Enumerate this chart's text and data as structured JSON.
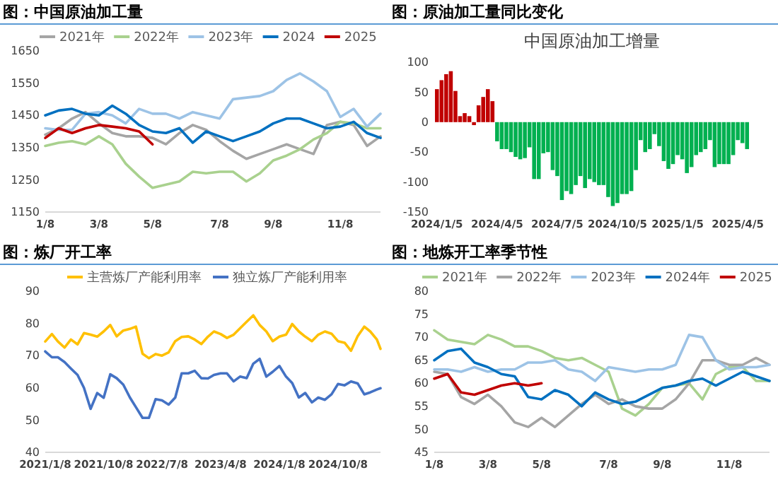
{
  "chart_data": [
    {
      "type": "line",
      "title": "图：中国原油加工量",
      "legend": "top",
      "categories": [
        "1/8",
        null,
        null,
        null,
        "3/8",
        null,
        null,
        null,
        "5/8",
        null,
        null,
        null,
        null,
        "7/8",
        null,
        null,
        null,
        "9/8",
        null,
        null,
        null,
        null,
        "11/8",
        null,
        null,
        null
      ],
      "ylim": [
        1150,
        1650
      ],
      "yticks": [
        1150,
        1250,
        1350,
        1450,
        1550,
        1650
      ],
      "series": [
        {
          "name": "2021年",
          "color": "#a5a5a5",
          "values": [
            1390,
            1410,
            1440,
            1460,
            1425,
            1395,
            1385,
            1385,
            1380,
            1360,
            1395,
            1420,
            1405,
            1370,
            1340,
            1315,
            1330,
            1345,
            1360,
            1345,
            1330,
            1420,
            1430,
            1420,
            1355,
            1385
          ]
        },
        {
          "name": "2022年",
          "color": "#a9d18e",
          "values": [
            1355,
            1365,
            1370,
            1360,
            1385,
            1360,
            1300,
            1260,
            1225,
            1235,
            1245,
            1275,
            1270,
            1275,
            1275,
            1245,
            1270,
            1310,
            1325,
            1345,
            1375,
            1395,
            1430,
            1425,
            1410,
            1410
          ]
        },
        {
          "name": "2023年",
          "color": "#9dc3e6",
          "values": [
            1410,
            1405,
            1405,
            1455,
            1460,
            1450,
            1425,
            1470,
            1455,
            1455,
            1440,
            1460,
            1450,
            1440,
            1500,
            1505,
            1510,
            1525,
            1560,
            1580,
            1555,
            1525,
            1445,
            1470,
            1415,
            1455
          ]
        },
        {
          "name": "2024",
          "color": "#0070c0",
          "values": [
            1450,
            1465,
            1470,
            1455,
            1450,
            1480,
            1455,
            1420,
            1400,
            1395,
            1410,
            1365,
            1400,
            1385,
            1370,
            1385,
            1400,
            1425,
            1440,
            1440,
            1425,
            1410,
            1415,
            1430,
            1395,
            1380
          ]
        },
        {
          "name": "2025",
          "color": "#c00000",
          "values": [
            1380,
            1410,
            1395,
            1410,
            1420,
            1415,
            1410,
            1400,
            1360,
            null,
            null,
            null,
            null,
            null,
            null,
            null,
            null,
            null,
            null,
            null,
            null,
            null,
            null,
            null,
            null,
            null
          ]
        }
      ]
    },
    {
      "type": "bar",
      "title": "图：原油加工量同比变化",
      "subtitle": "中国原油加工增量",
      "categories": [
        "2024/1/5",
        null,
        null,
        null,
        null,
        null,
        null,
        null,
        null,
        null,
        null,
        null,
        null,
        "2024/4/5",
        null,
        null,
        null,
        null,
        null,
        null,
        null,
        null,
        null,
        null,
        null,
        null,
        "2024/7/5",
        null,
        null,
        null,
        null,
        null,
        null,
        null,
        null,
        null,
        null,
        null,
        null,
        "2024/10/5",
        null,
        null,
        null,
        null,
        null,
        null,
        null,
        null,
        null,
        null,
        null,
        null,
        "2025/1/5",
        null,
        null,
        null,
        null,
        null,
        null,
        null,
        null,
        null,
        null,
        null,
        null,
        "2025/4/5",
        null,
        null
      ],
      "ylim": [
        -150,
        100
      ],
      "yticks": [
        -150,
        -100,
        -50,
        0,
        50,
        100
      ],
      "values": [
        55,
        70,
        80,
        85,
        52,
        10,
        15,
        10,
        -5,
        28,
        42,
        55,
        35,
        -32,
        -45,
        -45,
        -50,
        -58,
        -62,
        -60,
        -42,
        -95,
        -95,
        -52,
        -50,
        -80,
        -90,
        -130,
        -115,
        -120,
        -105,
        -90,
        -110,
        -95,
        -100,
        -105,
        -105,
        -125,
        -140,
        -135,
        -120,
        -120,
        -115,
        -80,
        -30,
        -50,
        -45,
        -20,
        -40,
        -65,
        -78,
        -70,
        -55,
        -62,
        -85,
        -75,
        -55,
        -50,
        -45,
        -30,
        -75,
        -70,
        -70,
        -70,
        -55,
        -30,
        -35,
        -45
      ],
      "colors": [
        "#c00000",
        "#c00000",
        "#c00000",
        "#c00000",
        "#c00000",
        "#c00000",
        "#c00000",
        "#c00000",
        "#c00000",
        "#c00000",
        "#c00000",
        "#c00000",
        "#c00000",
        "#00b050",
        "#00b050",
        "#00b050",
        "#00b050",
        "#00b050",
        "#00b050",
        "#00b050",
        "#00b050",
        "#00b050",
        "#00b050",
        "#00b050",
        "#00b050",
        "#00b050",
        "#00b050",
        "#00b050",
        "#00b050",
        "#00b050",
        "#00b050",
        "#00b050",
        "#00b050",
        "#00b050",
        "#00b050",
        "#00b050",
        "#00b050",
        "#00b050",
        "#00b050",
        "#00b050",
        "#00b050",
        "#00b050",
        "#00b050",
        "#00b050",
        "#00b050",
        "#00b050",
        "#00b050",
        "#00b050",
        "#00b050",
        "#00b050",
        "#00b050",
        "#00b050",
        "#00b050",
        "#00b050",
        "#00b050",
        "#00b050",
        "#00b050",
        "#00b050",
        "#00b050",
        "#00b050",
        "#00b050",
        "#00b050",
        "#00b050",
        "#00b050",
        "#00b050",
        "#00b050",
        "#00b050",
        "#00b050"
      ]
    },
    {
      "type": "line",
      "title": "图：炼厂开工率",
      "legend": "top",
      "x": [
        "2021-01-08",
        "2021-02-08",
        "2021-03-08",
        "2021-04-08",
        "2021-05-08",
        "2021-06-08",
        "2021-07-08",
        "2021-08-08",
        "2021-09-08",
        "2021-10-08",
        "2021-11-08",
        "2021-12-08",
        "2022-01-08",
        "2022-02-08",
        "2022-03-08",
        "2022-04-08",
        "2022-05-08",
        "2022-06-08",
        "2022-07-08",
        "2022-08-08",
        "2022-09-08",
        "2022-10-08",
        "2022-11-08",
        "2022-12-08",
        "2023-01-08",
        "2023-02-08",
        "2023-03-08",
        "2023-04-08",
        "2023-05-08",
        "2023-06-08",
        "2023-07-08",
        "2023-08-08",
        "2023-09-08",
        "2023-10-08",
        "2023-11-08",
        "2023-12-08",
        "2024-01-08",
        "2024-02-08",
        "2024-03-08",
        "2024-04-08",
        "2024-05-08",
        "2024-06-08",
        "2024-07-08",
        "2024-08-08",
        "2024-09-08",
        "2024-10-08",
        "2024-11-08",
        "2024-12-08",
        "2025-01-08",
        "2025-02-08",
        "2025-03-08",
        "2025-04-08",
        "2025-04-25"
      ],
      "xlim": [
        "2021-01-08",
        "2025-04-25"
      ],
      "xticks": [
        {
          "value": "2021-01-08",
          "label": "2021/1/8"
        },
        {
          "value": "2021-10-08",
          "label": "2021/10/8"
        },
        {
          "value": "2022-07-08",
          "label": "2022/7/8"
        },
        {
          "value": "2023-04-08",
          "label": "2023/4/8"
        },
        {
          "value": "2024-01-08",
          "label": "2024/1/8"
        },
        {
          "value": "2024-10-08",
          "label": "2024/10/8"
        }
      ],
      "ylim": [
        40,
        90
      ],
      "yticks": [
        40,
        50,
        60,
        70,
        80,
        90
      ],
      "series": [
        {
          "name": "主营炼厂产能利用率",
          "color": "#ffc000",
          "values": [
            74.4,
            76.7,
            74.4,
            72.5,
            75.0,
            73.5,
            77.0,
            76.5,
            75.9,
            77.5,
            79.5,
            76.0,
            77.8,
            78.3,
            79.0,
            70.6,
            69.2,
            70.5,
            70.0,
            71.0,
            74.5,
            75.8,
            76.0,
            75.0,
            73.6,
            75.9,
            77.5,
            76.7,
            75.5,
            76.5,
            78.5,
            80.5,
            82.5,
            79.5,
            77.5,
            74.5,
            75.9,
            76.5,
            79.8,
            77.5,
            75.9,
            74.5,
            76.5,
            77.5,
            76.8,
            74.5,
            74.0,
            71.5,
            76.0,
            79.0,
            77.5,
            75.0,
            72.1
          ]
        },
        {
          "name": "独立炼厂产能利用率",
          "color": "#4472c4",
          "values": [
            71.3,
            69.5,
            69.5,
            68.0,
            66.0,
            64.0,
            60.0,
            53.5,
            58.4,
            56.9,
            64.2,
            63.0,
            61.0,
            57.0,
            54.0,
            50.7,
            50.7,
            56.5,
            56.1,
            54.8,
            57.0,
            64.5,
            64.5,
            65.3,
            63.0,
            62.9,
            64.0,
            64.5,
            64.5,
            62.0,
            63.5,
            63.0,
            67.5,
            69.0,
            63.5,
            65.0,
            66.8,
            63.5,
            61.5,
            57.0,
            58.4,
            55.5,
            57.0,
            56.3,
            58.0,
            61.2,
            60.8,
            62.0,
            61.4,
            58.0,
            58.6,
            59.5,
            59.9
          ]
        }
      ]
    },
    {
      "type": "line",
      "title": "图：地炼开工率季节性",
      "legend": "top",
      "categories": [
        "1/8",
        null,
        null,
        null,
        "3/8",
        null,
        null,
        null,
        "5/8",
        null,
        null,
        null,
        null,
        "7/8",
        null,
        null,
        null,
        "9/8",
        null,
        null,
        null,
        null,
        "11/8",
        null,
        null,
        null
      ],
      "ylim": [
        45,
        80
      ],
      "yticks": [
        45,
        50,
        55,
        60,
        65,
        70,
        75,
        80
      ],
      "series": [
        {
          "name": "2021年",
          "color": "#a9d18e",
          "values": [
            71.5,
            69.5,
            69,
            68.5,
            70.5,
            69.5,
            68,
            68,
            67,
            65.5,
            65,
            65.5,
            64,
            62.5,
            54.5,
            53,
            55.5,
            59,
            59.5,
            60,
            56.5,
            62,
            63.5,
            63.5,
            60.5,
            60.5
          ]
        },
        {
          "name": "2022年",
          "color": "#a5a5a5",
          "values": [
            62.5,
            62,
            57,
            55.5,
            57.5,
            55,
            51.5,
            50.5,
            52.5,
            50.5,
            53,
            55.5,
            57.5,
            55.5,
            56.5,
            55,
            54.5,
            54.5,
            56.5,
            60,
            65,
            65,
            64,
            64,
            65.5,
            64
          ]
        },
        {
          "name": "2023年",
          "color": "#9dc3e6",
          "values": [
            63,
            63,
            62.5,
            63.5,
            62.5,
            63,
            63,
            64.5,
            64.5,
            65,
            63,
            62.5,
            60.5,
            63.5,
            63,
            62.5,
            63,
            63,
            64,
            70.5,
            70,
            65,
            63,
            63.5,
            63.5,
            64
          ]
        },
        {
          "name": "2024年",
          "color": "#0070c0",
          "values": [
            65,
            67,
            67.5,
            64.5,
            63.5,
            62,
            61.5,
            57,
            56.5,
            58.5,
            57.5,
            55,
            58,
            56.5,
            55.5,
            56,
            57.5,
            59,
            59.5,
            60.5,
            61,
            59.5,
            61,
            62.5,
            61.5,
            60.5
          ]
        },
        {
          "name": "2025",
          "color": "#c00000",
          "values": [
            61,
            62,
            58,
            57.5,
            58.5,
            59.5,
            60,
            59.5,
            60,
            null,
            null,
            null,
            null,
            null,
            null,
            null,
            null,
            null,
            null,
            null,
            null,
            null,
            null,
            null,
            null,
            null
          ]
        }
      ]
    }
  ]
}
